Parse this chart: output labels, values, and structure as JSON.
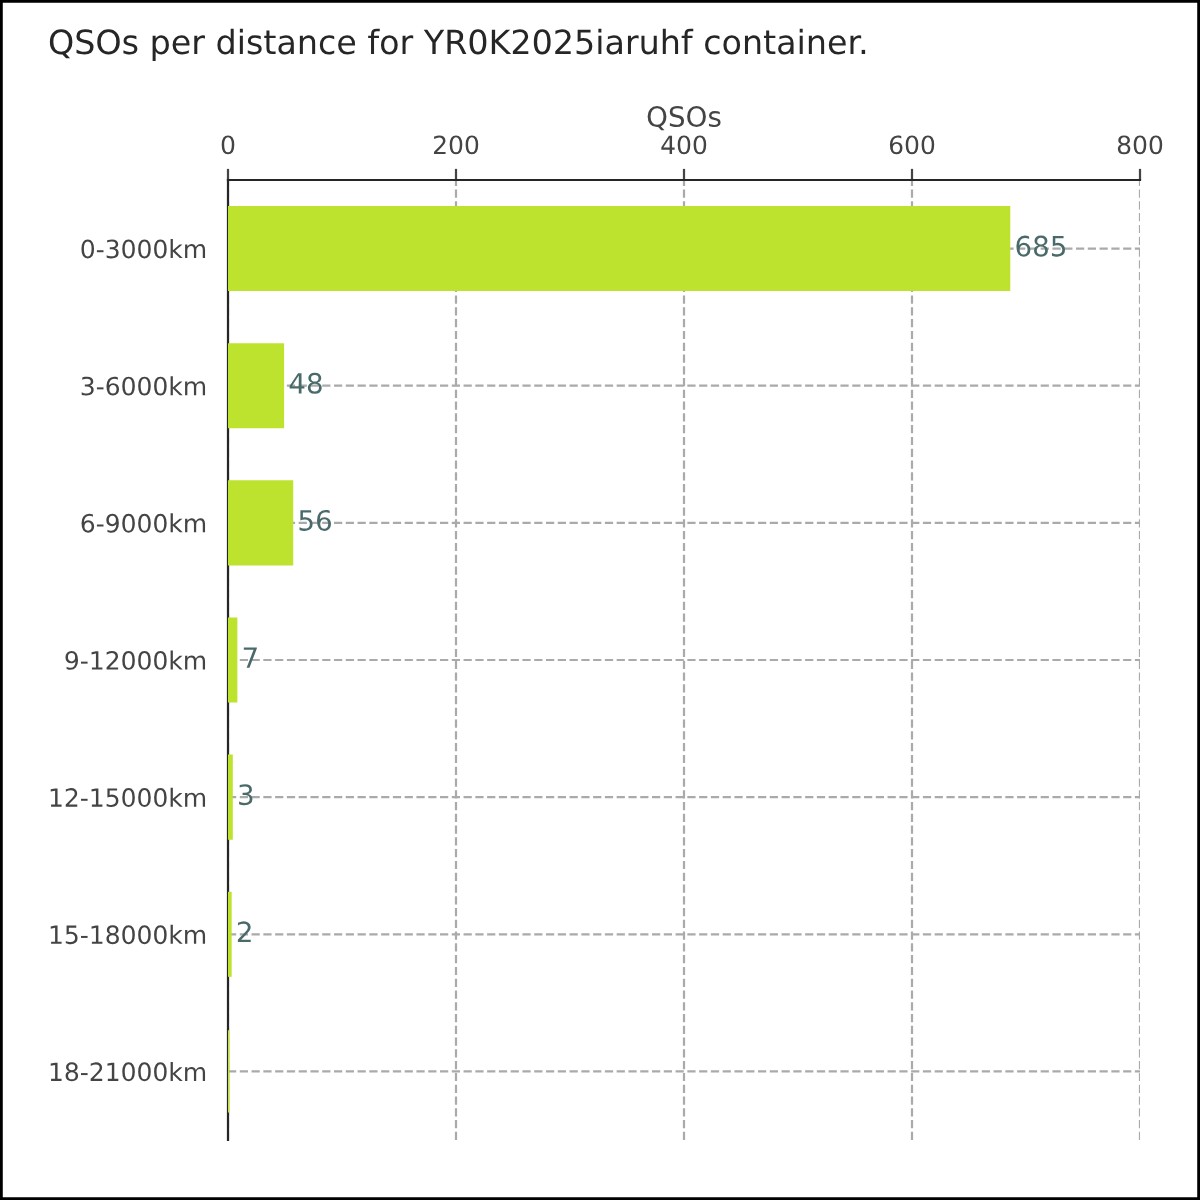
{
  "chart_data": {
    "type": "bar",
    "orientation": "horizontal",
    "title": "QSOs per distance for YR0K2025iaruhf container.",
    "xlabel": "QSOs",
    "categories": [
      "0-3000km",
      "3-6000km",
      "6-9000km",
      "9-12000km",
      "12-15000km",
      "15-18000km",
      "18-21000km"
    ],
    "values": [
      685,
      48,
      56,
      7,
      3,
      2,
      0
    ],
    "value_labels": [
      "685",
      "48",
      "56",
      "7",
      "3",
      "2",
      null
    ],
    "color": "#bde32f",
    "xlim": [
      0,
      800
    ],
    "xticks": [
      0,
      200,
      400,
      600,
      800
    ],
    "grid": true
  }
}
